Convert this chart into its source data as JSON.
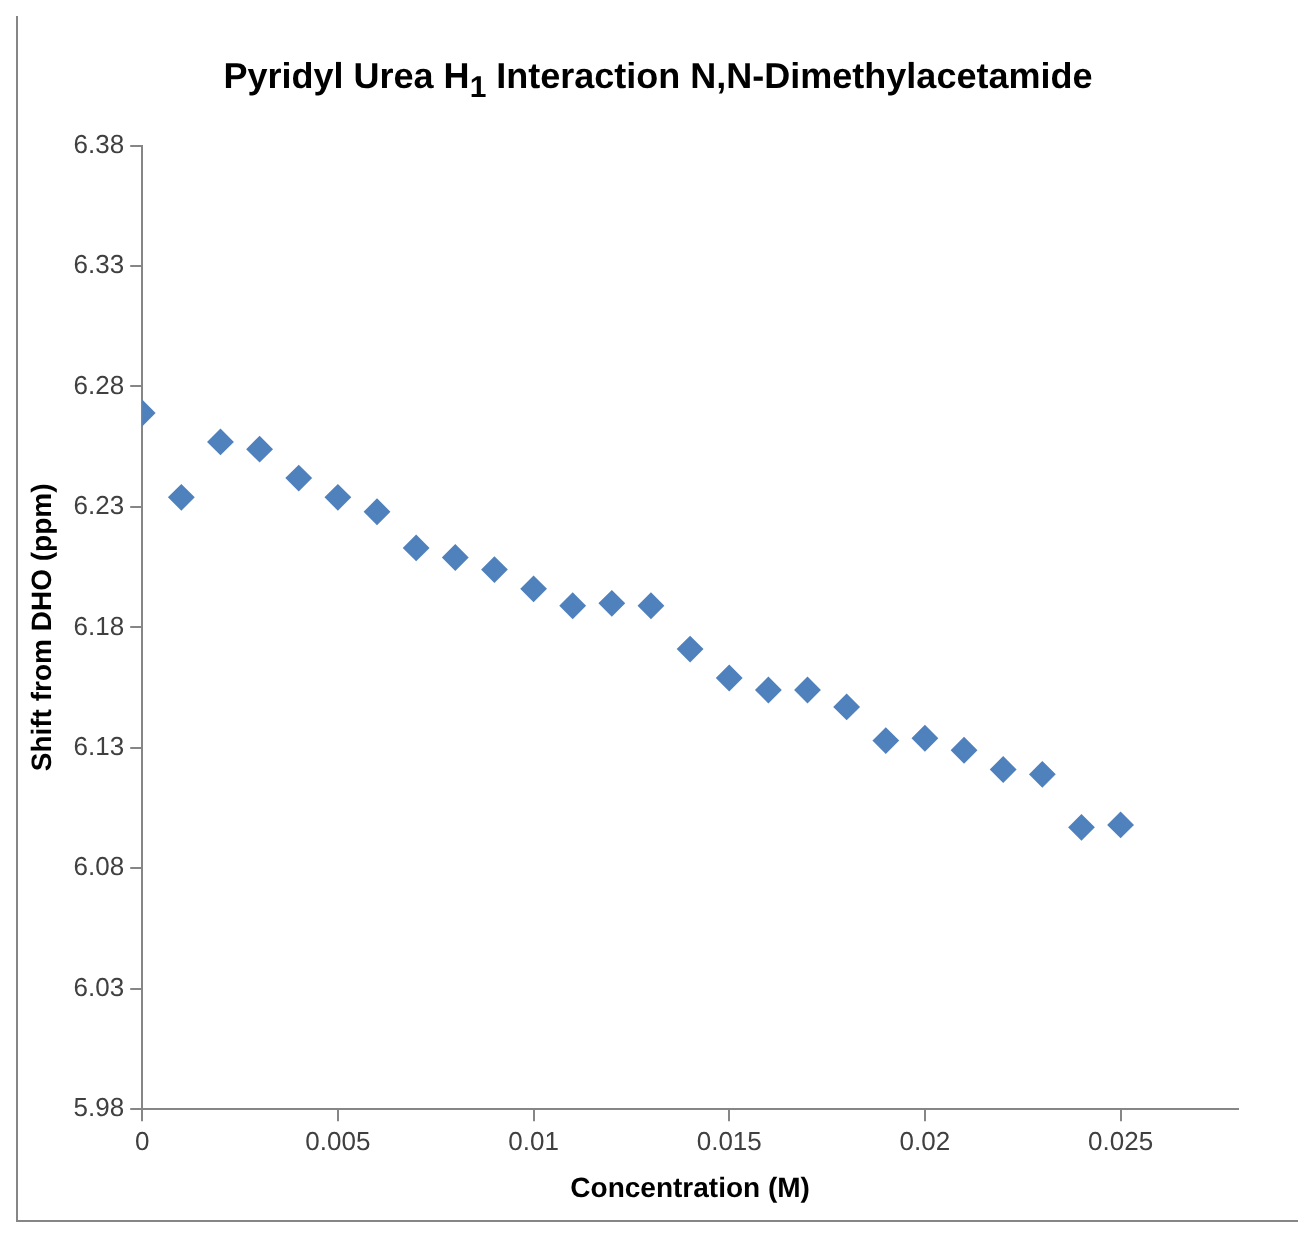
{
  "chart_data": {
    "type": "scatter",
    "title": "Pyridyl Urea H$_{1}$ Interaction N,N-Dimethylacetamide",
    "xlabel": "Concentration (M)",
    "ylabel": "Shift from DHO (ppm)",
    "x": [
      0,
      0.001,
      0.002,
      0.003,
      0.004,
      0.005,
      0.006,
      0.007,
      0.008,
      0.009,
      0.01,
      0.011,
      0.012,
      0.013,
      0.014,
      0.015,
      0.016,
      0.017,
      0.018,
      0.019,
      0.02,
      0.021,
      0.022,
      0.023,
      0.024,
      0.025
    ],
    "series": [
      {
        "color": "#4f81bd",
        "values": [
          6.269,
          6.234,
          6.257,
          6.254,
          6.242,
          6.234,
          6.228,
          6.213,
          6.209,
          6.204,
          6.196,
          6.189,
          6.19,
          6.189,
          6.171,
          6.159,
          6.154,
          6.154,
          6.147,
          6.133,
          6.134,
          6.129,
          6.121,
          6.119,
          6.097,
          6.098
        ]
      }
    ],
    "xlim": [
      0,
      0.028
    ],
    "xticks": [
      0,
      0.005,
      0.01,
      0.015,
      0.02,
      0.025
    ],
    "ylim": [
      5.98,
      6.38
    ],
    "yticks": [
      5.98,
      6.03,
      6.08,
      6.13,
      6.18,
      6.23,
      6.28,
      6.33,
      6.38
    ],
    "marker": "diamond"
  }
}
